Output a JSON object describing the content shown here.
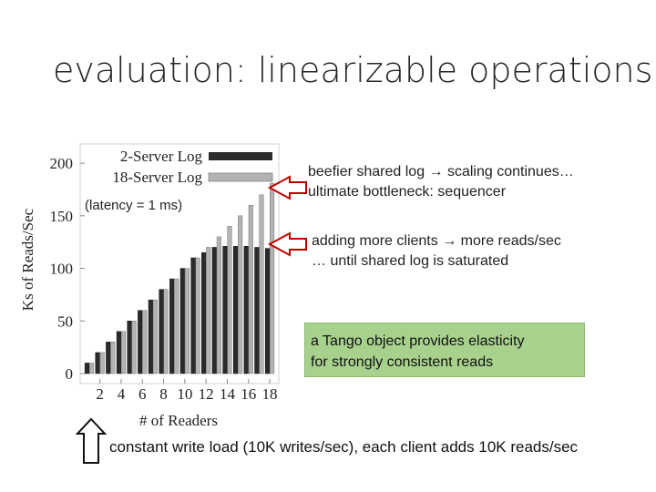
{
  "title": "evaluation: linearizable operations",
  "callouts": {
    "c1_line1": "beefier shared log → scaling continues…",
    "c1_line2": "ultimate bottleneck: sequencer",
    "c2_line1": "adding more clients → more reads/sec",
    "c2_line2": "… until shared log is saturated",
    "green_line1": "a Tango object provides elasticity",
    "green_line2": "for strongly consistent reads",
    "bottom": "constant write load (10K writes/sec), each client adds 10K reads/sec"
  },
  "colors": {
    "series_2server": "#2b2b2b",
    "series_18server": "#b3b3b3",
    "green_box": "#a9d18e",
    "arrow": "#c00000"
  },
  "chart_data": {
    "type": "bar",
    "annotation": "(latency = 1 ms)",
    "xlabel": "# of Readers",
    "ylabel": "Ks of Reads/Sec",
    "ylim": [
      0,
      220
    ],
    "yticks": [
      0,
      50,
      100,
      150,
      200
    ],
    "x": [
      1,
      2,
      3,
      4,
      5,
      6,
      7,
      8,
      9,
      10,
      11,
      12,
      13,
      14,
      15,
      16,
      17,
      18
    ],
    "xtick_labels": [
      "2",
      "4",
      "6",
      "8",
      "10",
      "12",
      "14",
      "16",
      "18"
    ],
    "xtick_positions": [
      2,
      4,
      6,
      8,
      10,
      12,
      14,
      16,
      18
    ],
    "legend_position": "top-right",
    "series": [
      {
        "name": "2-Server Log",
        "values": [
          10,
          20,
          30,
          40,
          50,
          60,
          70,
          80,
          90,
          100,
          110,
          115,
          120,
          121,
          121,
          121,
          120,
          119
        ]
      },
      {
        "name": "18-Server Log",
        "values": [
          10,
          20,
          30,
          40,
          50,
          60,
          70,
          80,
          90,
          100,
          110,
          120,
          130,
          140,
          150,
          160,
          170,
          181
        ]
      }
    ]
  }
}
